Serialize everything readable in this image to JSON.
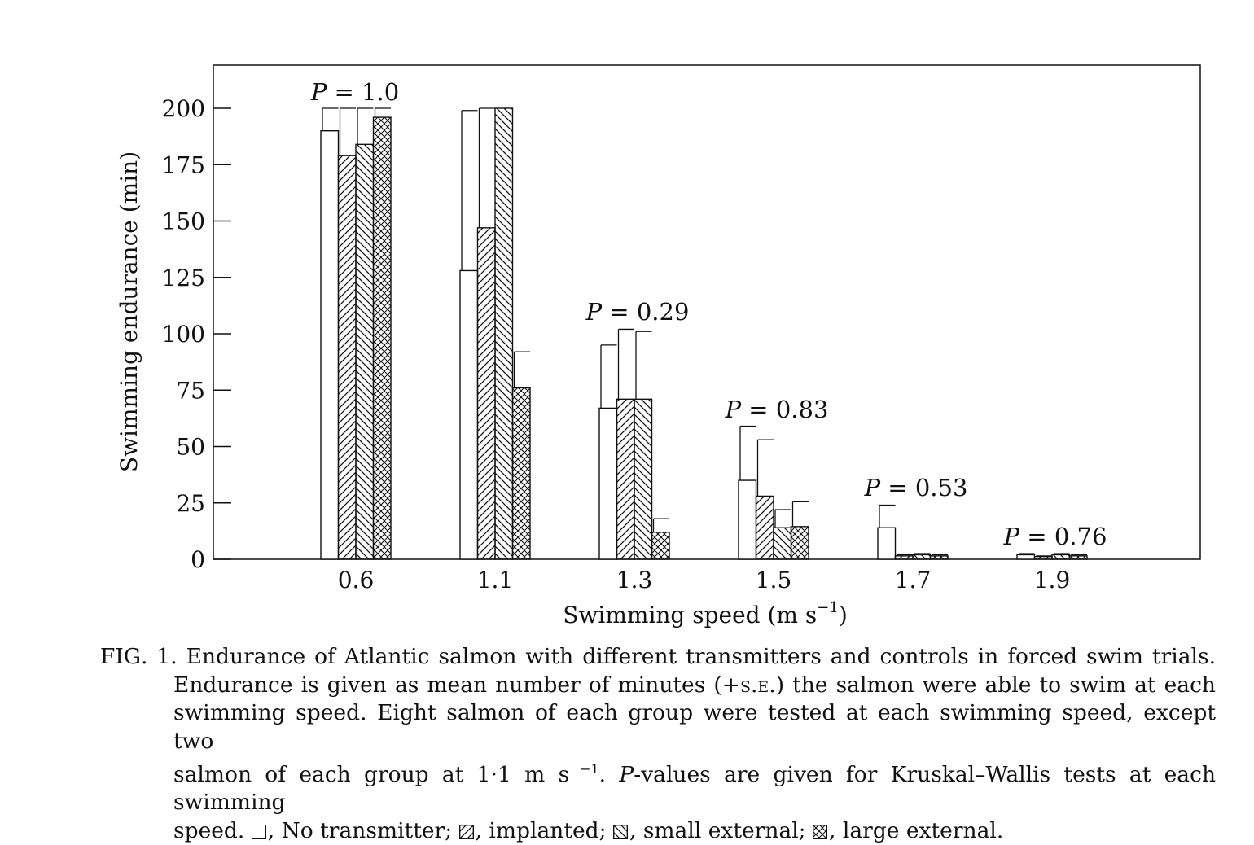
{
  "chart_data": {
    "type": "bar",
    "xlabel": "Swimming speed (m s",
    "xlabel_sup": "−1",
    "xlabel_close": ")",
    "ylabel": "Swimming endurance (min)",
    "ylim": [
      0,
      220
    ],
    "yticks": [
      "0",
      "25",
      "50",
      "75",
      "100",
      "125",
      "150",
      "175",
      "200"
    ],
    "categories": [
      "0.6",
      "1.1",
      "1.3",
      "1.5",
      "1.7",
      "1.9"
    ],
    "series": [
      {
        "name": "No transmitter",
        "pattern": "none",
        "values": [
          190,
          128,
          67,
          35,
          14,
          2
        ],
        "errors": [
          10,
          71,
          28,
          24,
          10,
          0.5
        ]
      },
      {
        "name": "implanted",
        "pattern": "diag-right",
        "values": [
          179,
          147,
          71,
          28,
          1.5,
          1.2
        ],
        "errors": [
          21,
          53,
          31,
          25,
          0.5,
          0.3
        ]
      },
      {
        "name": "small external",
        "pattern": "diag-left",
        "values": [
          184,
          200,
          71,
          14,
          2,
          2
        ],
        "errors": [
          16,
          0,
          30,
          8,
          0.5,
          0.5
        ]
      },
      {
        "name": "large external",
        "pattern": "cross",
        "values": [
          196,
          76,
          12,
          14.5,
          1.5,
          1.5
        ],
        "errors": [
          4,
          16,
          6,
          11,
          0.5,
          0.5
        ]
      }
    ],
    "annotations": [
      {
        "category": "0.6",
        "italic": "P",
        "text": " = 1.0"
      },
      {
        "category": "1.3",
        "italic": "P",
        "text": " = 0.29"
      },
      {
        "category": "1.5",
        "italic": "P",
        "text": " = 0.83"
      },
      {
        "category": "1.7",
        "italic": "P",
        "text": " = 0.53"
      },
      {
        "category": "1.9",
        "italic": "P",
        "text": " = 0.76"
      }
    ],
    "grid": false,
    "legend": "in caption"
  },
  "caption": {
    "line1_prefix": "F",
    "line1_smallcaps": "IG",
    "line1_text": ". 1. Endurance of Atlantic salmon with different transmitters and controls in forced swim trials.",
    "line2_a": "Endurance is given as mean number of minutes (+",
    "line2_sc": "s.e.",
    "line2_b": ") the salmon were able to swim at each",
    "line3": "swimming speed.  Eight salmon of each group were tested at each swimming speed, except two",
    "line4_a": "salmon of each group at 1·1 m s",
    "line4_sup": " −1",
    "line4_b": ".  ",
    "line4_italic": "P",
    "line4_c": "-values are given for Kruskal–Wallis tests at each swimming",
    "line5_a": "speed.  ",
    "legend_no": ", No transmitter; ",
    "legend_impl": ", implanted; ",
    "legend_small": ", small external; ",
    "legend_large": ", large external."
  }
}
